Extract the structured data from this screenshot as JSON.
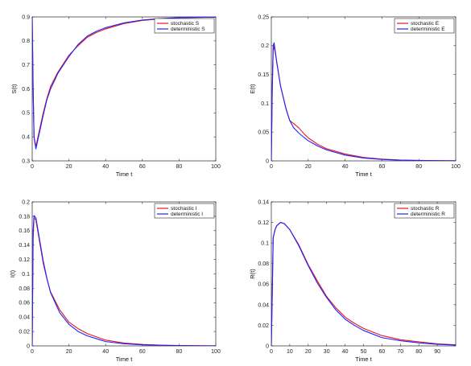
{
  "chart_data": [
    {
      "type": "line",
      "xlabel": "Time t",
      "ylabel": "S(t)",
      "xlim": [
        0,
        100
      ],
      "ylim": [
        0.3,
        0.9
      ],
      "xticks": [
        "0",
        "20",
        "40",
        "60",
        "80",
        "100"
      ],
      "yticks": [
        "0.3",
        "0.4",
        "0.5",
        "0.6",
        "0.7",
        "0.8",
        "0.9"
      ],
      "xtick_values": [
        0,
        20,
        40,
        60,
        80,
        100
      ],
      "ytick_values": [
        0.3,
        0.4,
        0.5,
        0.6,
        0.7,
        0.8,
        0.9
      ],
      "legend_position": "top-right",
      "series": [
        {
          "name": "stochastic S",
          "color": "#e41a1c",
          "x": [
            0,
            0.5,
            1,
            2,
            4,
            6,
            8,
            10,
            14,
            20,
            25,
            30,
            35,
            40,
            50,
            60,
            70,
            80,
            90,
            100
          ],
          "y": [
            0.9,
            0.6,
            0.4,
            0.36,
            0.43,
            0.5,
            0.56,
            0.61,
            0.67,
            0.74,
            0.78,
            0.815,
            0.835,
            0.85,
            0.872,
            0.885,
            0.892,
            0.896,
            0.898,
            0.899
          ]
        },
        {
          "name": "deterministic S",
          "color": "#1f1fff",
          "x": [
            0,
            0.5,
            1,
            2,
            4,
            6,
            8,
            10,
            14,
            20,
            25,
            30,
            35,
            40,
            50,
            60,
            70,
            80,
            90,
            100
          ],
          "y": [
            0.9,
            0.6,
            0.4,
            0.35,
            0.42,
            0.49,
            0.555,
            0.6,
            0.665,
            0.735,
            0.785,
            0.82,
            0.84,
            0.855,
            0.875,
            0.887,
            0.893,
            0.897,
            0.898,
            0.899
          ]
        }
      ]
    },
    {
      "type": "line",
      "xlabel": "Time t",
      "ylabel": "E(t)",
      "xlim": [
        0,
        100
      ],
      "ylim": [
        0,
        0.25
      ],
      "xticks": [
        "0",
        "20",
        "40",
        "60",
        "80",
        "100"
      ],
      "yticks": [
        "0",
        "0.05",
        "0.1",
        "0.15",
        "0.2",
        "0.25"
      ],
      "xtick_values": [
        0,
        20,
        40,
        60,
        80,
        100
      ],
      "ytick_values": [
        0,
        0.05,
        0.1,
        0.15,
        0.2,
        0.25
      ],
      "legend_position": "top-right",
      "series": [
        {
          "name": "stochastic E",
          "color": "#e41a1c",
          "x": [
            0,
            0.5,
            1,
            1.5,
            3,
            5,
            8,
            10,
            12,
            15,
            18,
            20,
            25,
            30,
            40,
            50,
            60,
            70,
            80,
            90,
            100
          ],
          "y": [
            0,
            0.12,
            0.19,
            0.2,
            0.17,
            0.13,
            0.09,
            0.07,
            0.065,
            0.057,
            0.046,
            0.04,
            0.029,
            0.021,
            0.012,
            0.006,
            0.003,
            0.0015,
            0.0008,
            0.0004,
            0.0002
          ]
        },
        {
          "name": "deterministic E",
          "color": "#1f1fff",
          "x": [
            0,
            0.5,
            1,
            1.5,
            3,
            5,
            8,
            10,
            12,
            15,
            18,
            20,
            25,
            30,
            40,
            50,
            60,
            70,
            80,
            90,
            100
          ],
          "y": [
            0,
            0.13,
            0.2,
            0.205,
            0.17,
            0.13,
            0.09,
            0.07,
            0.058,
            0.048,
            0.04,
            0.035,
            0.026,
            0.019,
            0.01,
            0.005,
            0.0025,
            0.0012,
            0.0006,
            0.0003,
            0.0001
          ]
        }
      ]
    },
    {
      "type": "line",
      "xlabel": "Time t",
      "ylabel": "I(t)",
      "xlim": [
        0,
        100
      ],
      "ylim": [
        0,
        0.2
      ],
      "xticks": [
        "0",
        "20",
        "40",
        "60",
        "80",
        "100"
      ],
      "yticks": [
        "0",
        "0.02",
        "0.04",
        "0.06",
        "0.08",
        "0.1",
        "0.12",
        "0.14",
        "0.16",
        "0.18",
        "0.2"
      ],
      "xtick_values": [
        0,
        20,
        40,
        60,
        80,
        100
      ],
      "ytick_values": [
        0,
        0.02,
        0.04,
        0.06,
        0.08,
        0.1,
        0.12,
        0.14,
        0.16,
        0.18,
        0.2
      ],
      "legend_position": "top-right",
      "series": [
        {
          "name": "stochastic I",
          "color": "#e41a1c",
          "x": [
            0,
            0.5,
            1,
            2,
            4,
            6,
            8,
            10,
            15,
            20,
            25,
            30,
            40,
            50,
            60,
            70,
            80,
            90,
            100
          ],
          "y": [
            0,
            0.15,
            0.178,
            0.175,
            0.145,
            0.115,
            0.093,
            0.075,
            0.05,
            0.033,
            0.024,
            0.017,
            0.008,
            0.004,
            0.002,
            0.001,
            0.0005,
            0.0003,
            0.0001
          ]
        },
        {
          "name": "deterministic I",
          "color": "#1f1fff",
          "x": [
            0,
            0.5,
            1,
            2,
            4,
            6,
            8,
            10,
            15,
            20,
            25,
            30,
            40,
            50,
            60,
            70,
            80,
            90,
            100
          ],
          "y": [
            0,
            0.16,
            0.181,
            0.178,
            0.148,
            0.118,
            0.094,
            0.074,
            0.046,
            0.03,
            0.02,
            0.014,
            0.006,
            0.003,
            0.0015,
            0.0007,
            0.0003,
            0.0001,
            0.0001
          ]
        }
      ]
    },
    {
      "type": "line",
      "xlabel": "Time t",
      "ylabel": "R(t)",
      "xlim": [
        0,
        100
      ],
      "ylim": [
        0,
        0.14
      ],
      "xticks": [
        "0",
        "10",
        "20",
        "30",
        "40",
        "50",
        "60",
        "70",
        "80",
        "90"
      ],
      "yticks": [
        "0",
        "0.02",
        "0.04",
        "0.06",
        "0.08",
        "0.1",
        "0.12",
        "0.14"
      ],
      "xtick_values": [
        0,
        10,
        20,
        30,
        40,
        50,
        60,
        70,
        80,
        90
      ],
      "ytick_values": [
        0,
        0.02,
        0.04,
        0.06,
        0.08,
        0.1,
        0.12,
        0.14
      ],
      "legend_position": "top-right",
      "series": [
        {
          "name": "stochastic R",
          "color": "#e41a1c",
          "x": [
            0,
            0.5,
            1,
            2,
            3,
            5,
            7,
            10,
            15,
            20,
            25,
            30,
            35,
            40,
            45,
            50,
            60,
            70,
            80,
            90,
            100
          ],
          "y": [
            0,
            0.05,
            0.105,
            0.113,
            0.117,
            0.12,
            0.119,
            0.113,
            0.098,
            0.079,
            0.063,
            0.048,
            0.037,
            0.028,
            0.022,
            0.017,
            0.01,
            0.006,
            0.004,
            0.002,
            0.001
          ]
        },
        {
          "name": "deterministic R",
          "color": "#1f1fff",
          "x": [
            0,
            0.5,
            1,
            2,
            3,
            5,
            7,
            10,
            15,
            20,
            25,
            30,
            35,
            40,
            45,
            50,
            60,
            70,
            80,
            90,
            100
          ],
          "y": [
            0,
            0.05,
            0.105,
            0.113,
            0.117,
            0.12,
            0.119,
            0.113,
            0.097,
            0.078,
            0.061,
            0.047,
            0.035,
            0.026,
            0.02,
            0.015,
            0.008,
            0.005,
            0.003,
            0.0015,
            0.0008
          ]
        }
      ]
    }
  ]
}
